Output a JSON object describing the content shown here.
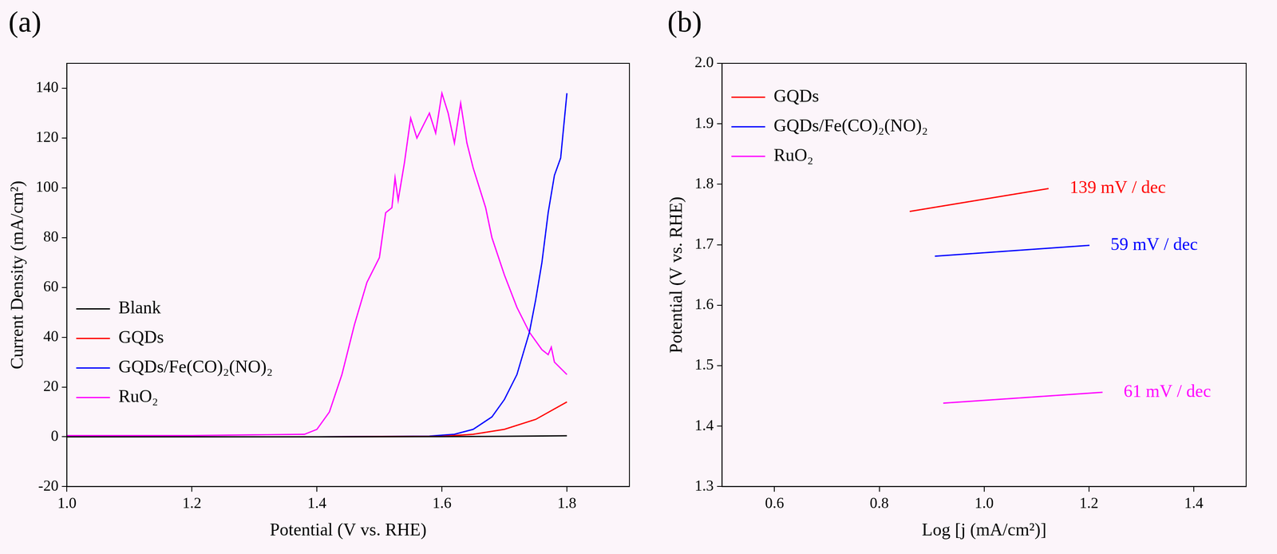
{
  "chart_data": [
    {
      "type": "line",
      "panel": "(a)",
      "x_label": "Potential (V vs. RHE)",
      "y_label": "Current Density (mA/cm²)",
      "xlim": [
        1.0,
        1.9
      ],
      "xticks": [
        {
          "value": 1.0,
          "label": "1.0"
        },
        1.2,
        1.4,
        1.6,
        1.8
      ],
      "ylim": [
        -20,
        150
      ],
      "yticks": [
        -20,
        0,
        20,
        40,
        60,
        80,
        100,
        120,
        140
      ],
      "grid": false,
      "legend": "left",
      "series": [
        {
          "name": "Blank",
          "color": "#000000",
          "x": [
            1.0,
            1.2,
            1.4,
            1.6,
            1.7,
            1.8
          ],
          "values": [
            0,
            0,
            0,
            0.1,
            0.2,
            0.4
          ]
        },
        {
          "name": "GQDs",
          "color": "#ff0000",
          "x": [
            1.0,
            1.4,
            1.6,
            1.65,
            1.7,
            1.75,
            1.8
          ],
          "values": [
            0,
            0,
            0.2,
            1,
            3,
            7,
            14
          ]
        },
        {
          "name": "GQDs/Fe(CO)₂(NO)₂",
          "color": "#0000ff",
          "x": [
            1.0,
            1.4,
            1.58,
            1.62,
            1.65,
            1.68,
            1.7,
            1.72,
            1.74,
            1.75,
            1.76,
            1.77,
            1.78,
            1.79,
            1.795,
            1.8
          ],
          "values": [
            0,
            0,
            0.3,
            1,
            3,
            8,
            15,
            25,
            42,
            55,
            70,
            90,
            105,
            112,
            125,
            138
          ]
        },
        {
          "name": "RuO₂",
          "color": "#ff00ff",
          "x": [
            1.0,
            1.2,
            1.38,
            1.4,
            1.42,
            1.44,
            1.46,
            1.48,
            1.5,
            1.51,
            1.52,
            1.525,
            1.53,
            1.54,
            1.55,
            1.56,
            1.57,
            1.58,
            1.59,
            1.6,
            1.61,
            1.62,
            1.63,
            1.64,
            1.65,
            1.66,
            1.67,
            1.68,
            1.7,
            1.72,
            1.74,
            1.76,
            1.77,
            1.775,
            1.78,
            1.8
          ],
          "values": [
            0.5,
            0.5,
            1,
            3,
            10,
            25,
            45,
            62,
            72,
            90,
            92,
            104,
            95,
            110,
            128,
            120,
            125,
            130,
            122,
            138,
            130,
            118,
            134,
            118,
            108,
            100,
            92,
            80,
            65,
            52,
            42,
            35,
            33,
            36,
            30,
            25
          ]
        }
      ]
    },
    {
      "type": "line",
      "panel": "(b)",
      "x_label": "Log [j (mA/cm²)]",
      "y_label": "Potential (V vs. RHE)",
      "xlim": [
        0.5,
        1.5
      ],
      "xticks": [
        0.6,
        0.8,
        {
          "value": 1.0,
          "label": "1.0"
        },
        1.2,
        1.4
      ],
      "ylim": [
        1.3,
        2.0
      ],
      "yticks": [
        1.3,
        1.4,
        1.5,
        1.6,
        1.7,
        1.8,
        1.9,
        {
          "value": 2.0,
          "label": "2.0"
        }
      ],
      "grid": false,
      "legend": "upper left",
      "series": [
        {
          "name": "GQDs",
          "color": "#ff0000",
          "x": [
            0.858,
            1.123
          ],
          "values": [
            1.755,
            1.793
          ],
          "annotation": "139 mV / dec"
        },
        {
          "name": "GQDs/Fe(CO)₂(NO)₂",
          "color": "#0000ff",
          "x": [
            0.906,
            1.201
          ],
          "values": [
            1.681,
            1.699
          ],
          "annotation": "59 mV / dec"
        },
        {
          "name": "RuO₂",
          "color": "#ff00ff",
          "x": [
            0.922,
            1.226
          ],
          "values": [
            1.438,
            1.456
          ],
          "annotation": "61 mV / dec"
        }
      ]
    }
  ]
}
